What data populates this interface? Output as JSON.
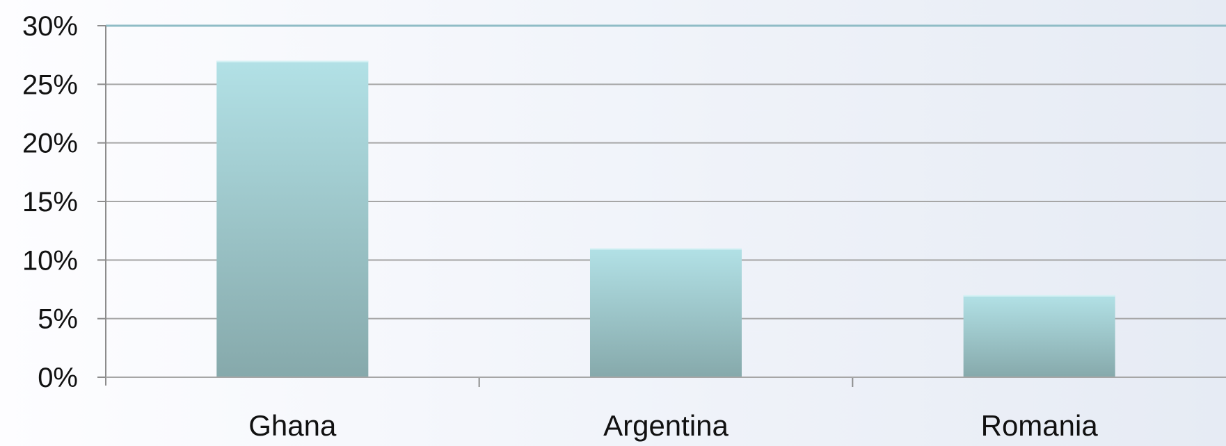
{
  "chart_data": {
    "type": "bar",
    "title": "",
    "xlabel": "",
    "ylabel": "",
    "categories": [
      "Ghana",
      "Argentina",
      "Romania"
    ],
    "values": [
      27,
      11,
      7
    ],
    "ylim": [
      0,
      30
    ],
    "y_ticks": [
      "0%",
      "5%",
      "10%",
      "15%",
      "20%",
      "25%",
      "30%"
    ],
    "grid": true,
    "legend": "none",
    "colors": {
      "bar_top": "#b2e1e6",
      "bar_bottom": "#86a9ab",
      "grid": "#a6a6a6",
      "top_line": "#8fbcc6"
    }
  }
}
